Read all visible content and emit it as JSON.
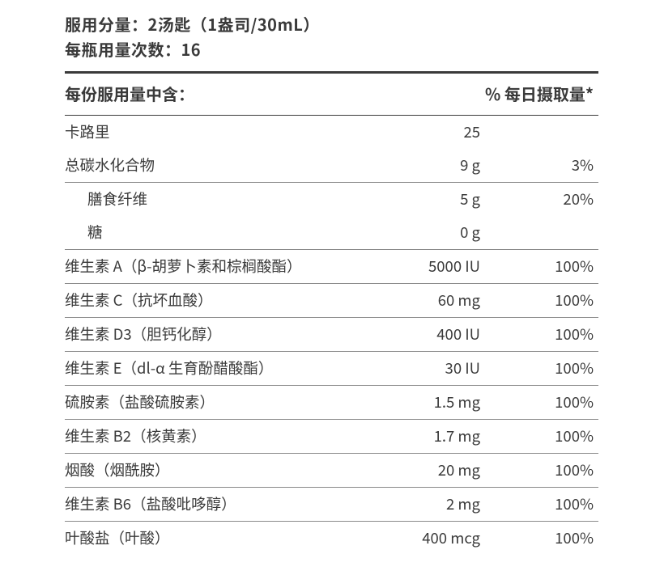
{
  "header": {
    "serving_size_line": "服用分量：2汤匙（1盎司/30mL）",
    "servings_per_line": "每瓶用量次数：16"
  },
  "columns": {
    "name_header": "每份服用量中含：",
    "dv_header": "% 每日摄取量*"
  },
  "rows": [
    {
      "name": "卡路里",
      "amount": "25",
      "dv": "",
      "indent": false,
      "border": false
    },
    {
      "name": "总碳水化合物",
      "amount": "9 g",
      "dv": "3%",
      "indent": false,
      "border": true
    },
    {
      "name": "膳食纤维",
      "amount": "5 g",
      "dv": "20%",
      "indent": true,
      "border": false
    },
    {
      "name": "糖",
      "amount": "0  g",
      "dv": "",
      "indent": true,
      "border": true
    },
    {
      "name": "维生素 A（β-胡萝卜素和棕榈酸酯）",
      "amount": "5000 IU",
      "dv": "100%",
      "indent": false,
      "border": true
    },
    {
      "name": "维生素 C（抗坏血酸）",
      "amount": "60 mg",
      "dv": "100%",
      "indent": false,
      "border": true
    },
    {
      "name": "维生素 D3（胆钙化醇）",
      "amount": "400 IU",
      "dv": "100%",
      "indent": false,
      "border": true
    },
    {
      "name": "维生素 E（dl-α 生育酚醋酸酯）",
      "amount": "30 IU",
      "dv": "100%",
      "indent": false,
      "border": true
    },
    {
      "name": "硫胺素（盐酸硫胺素）",
      "amount": "1.5 mg",
      "dv": "100%",
      "indent": false,
      "border": true
    },
    {
      "name": "维生素 B2（核黄素）",
      "amount": "1.7 mg",
      "dv": "100%",
      "indent": false,
      "border": true
    },
    {
      "name": "烟酸（烟酰胺）",
      "amount": "20 mg",
      "dv": "100%",
      "indent": false,
      "border": true
    },
    {
      "name": "维生素 B6（盐酸吡哆醇）",
      "amount": "2 mg",
      "dv": "100%",
      "indent": false,
      "border": true
    },
    {
      "name": "叶酸盐（叶酸）",
      "amount": "400 mcg",
      "dv": "100%",
      "indent": false,
      "border": false
    }
  ],
  "style": {
    "text_color": "#3a3a3a",
    "rule_color": "#3a3a3a",
    "row_border_color": "#8a8a8a",
    "background": "#ffffff",
    "header_fontsize_pt": 15,
    "row_fontsize_pt": 14
  }
}
